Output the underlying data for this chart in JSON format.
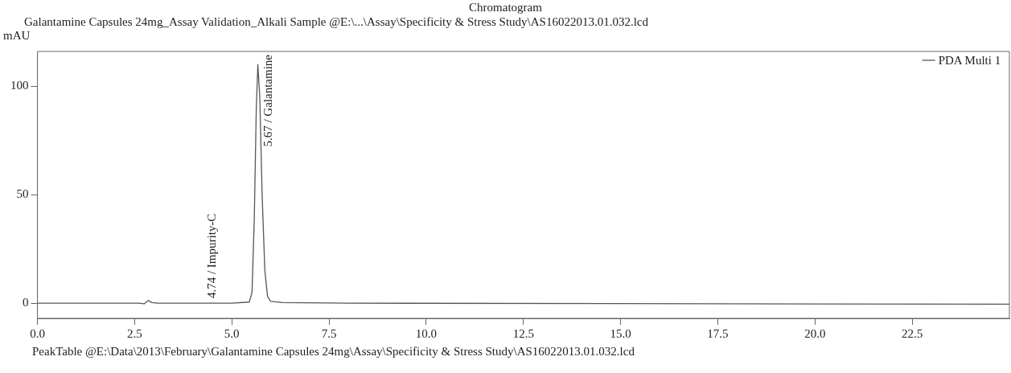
{
  "chart_data": {
    "type": "line",
    "title": "Chromatogram",
    "subtitle": "Galantamine Capsules 24mg_Assay Validation_Alkali Sample @E:\\...\\Assay\\Specificity & Stress Study\\AS16022013.01.032.lcd",
    "ylabel": "mAU",
    "x": [
      0,
      2.6,
      2.75,
      2.85,
      2.95,
      3.1,
      5.0,
      5.45,
      5.52,
      5.58,
      5.63,
      5.67,
      5.72,
      5.78,
      5.85,
      5.92,
      6.0,
      6.3,
      8,
      25
    ],
    "series": [
      {
        "name": "PDA Multi 1",
        "color": "#555555",
        "values": [
          0,
          0,
          -0.3,
          1.2,
          0.3,
          0,
          0,
          0.5,
          5,
          40,
          90,
          110,
          95,
          50,
          15,
          3,
          0.8,
          0.3,
          0,
          -0.5
        ]
      }
    ],
    "xlim": [
      0,
      25
    ],
    "ylim": [
      -7,
      116
    ],
    "xticks": [
      {
        "value": 0,
        "label": "0.0"
      },
      {
        "value": 2.5,
        "label": "2.5"
      },
      {
        "value": 5,
        "label": "5.0"
      },
      {
        "value": 7.5,
        "label": "7.5"
      },
      {
        "value": 10,
        "label": "10.0"
      },
      {
        "value": 12.5,
        "label": "12.5"
      },
      {
        "value": 15,
        "label": "15.0"
      },
      {
        "value": 17.5,
        "label": "17.5"
      },
      {
        "value": 20,
        "label": "20.0"
      },
      {
        "value": 22.5,
        "label": "22.5"
      }
    ],
    "yticks": [
      0,
      50,
      100
    ],
    "legend": "top right",
    "marker": "none",
    "line_style": "solid",
    "annotations": [
      {
        "text": "4.74 / Impurity-C",
        "x": 4.74,
        "y": 0
      },
      {
        "text": "5.67 / Galantamine",
        "x": 5.67,
        "y": 110
      },
      "PeakTable @E:\\Data\\2013\\February\\Galantamine Capsules 24mg\\Assay\\Specificity & Stress Study\\AS16022013.01.032.lcd"
    ]
  }
}
